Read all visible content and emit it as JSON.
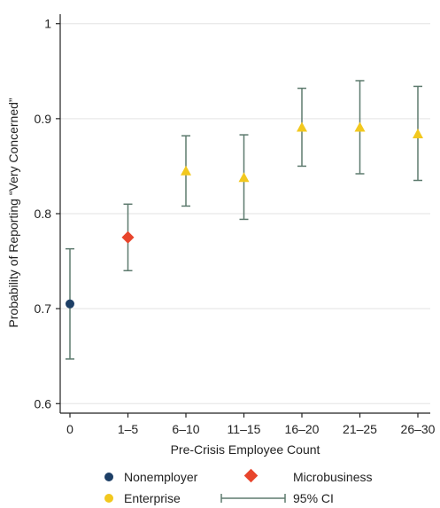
{
  "chart_data": {
    "type": "scatter",
    "xlabel": "Pre-Crisis Employee Count",
    "ylabel": "Probability of Reporting “Very Concerned”",
    "categories": [
      "0",
      "1–5",
      "6–10",
      "11–15",
      "16–20",
      "21–25",
      "26–30"
    ],
    "ylim": [
      0.59,
      1.01
    ],
    "yticks": [
      0.6,
      0.7,
      0.8,
      0.9,
      1
    ],
    "ytick_labels": [
      "0.6",
      "0.7",
      "0.8",
      "0.9",
      "1"
    ],
    "grid": "horizontal",
    "legend_position": "bottom",
    "points": [
      {
        "category": "0",
        "value": 0.705,
        "ci_low": 0.647,
        "ci_high": 0.763,
        "group": "Nonemployer"
      },
      {
        "category": "1–5",
        "value": 0.775,
        "ci_low": 0.74,
        "ci_high": 0.81,
        "group": "Microbusiness"
      },
      {
        "category": "6–10",
        "value": 0.845,
        "ci_low": 0.808,
        "ci_high": 0.882,
        "group": "Enterprise"
      },
      {
        "category": "11–15",
        "value": 0.838,
        "ci_low": 0.794,
        "ci_high": 0.883,
        "group": "Enterprise"
      },
      {
        "category": "16–20",
        "value": 0.891,
        "ci_low": 0.85,
        "ci_high": 0.932,
        "group": "Enterprise"
      },
      {
        "category": "21–25",
        "value": 0.891,
        "ci_low": 0.842,
        "ci_high": 0.94,
        "group": "Enterprise"
      },
      {
        "category": "26–30",
        "value": 0.884,
        "ci_low": 0.835,
        "ci_high": 0.934,
        "group": "Enterprise"
      }
    ],
    "groups": {
      "Nonemployer": {
        "marker": "circle",
        "color": "#1d3f66"
      },
      "Microbusiness": {
        "marker": "diamond",
        "color": "#e8452c"
      },
      "Enterprise": {
        "marker": "triangle",
        "color": "#f2c81e"
      }
    },
    "ci_color": "#5d7a6e",
    "legend": {
      "nonemployer": "Nonemployer",
      "microbusiness": "Microbusiness",
      "enterprise": "Enterprise",
      "ci": "95% CI"
    }
  }
}
